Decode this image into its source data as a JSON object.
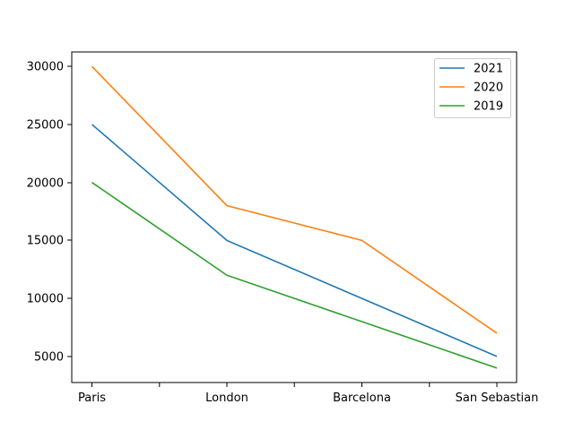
{
  "chart_data": {
    "type": "line",
    "title": "",
    "xlabel": "",
    "ylabel": "",
    "categories": [
      "Paris",
      "London",
      "Barcelona",
      "San Sebastian"
    ],
    "yticks": [
      "5000",
      "10000",
      "15000",
      "20000",
      "25000",
      "30000"
    ],
    "ylim": [
      2750,
      31250
    ],
    "grid": false,
    "legend_position": "top-right",
    "series": [
      {
        "name": "2021",
        "color": "#1f77b4",
        "values": [
          25000,
          15000,
          10000,
          5000
        ]
      },
      {
        "name": "2020",
        "color": "#ff7f0e",
        "values": [
          30000,
          18000,
          15000,
          7000
        ]
      },
      {
        "name": "2019",
        "color": "#2ca02c",
        "values": [
          20000,
          12000,
          8000,
          4000
        ]
      }
    ]
  }
}
